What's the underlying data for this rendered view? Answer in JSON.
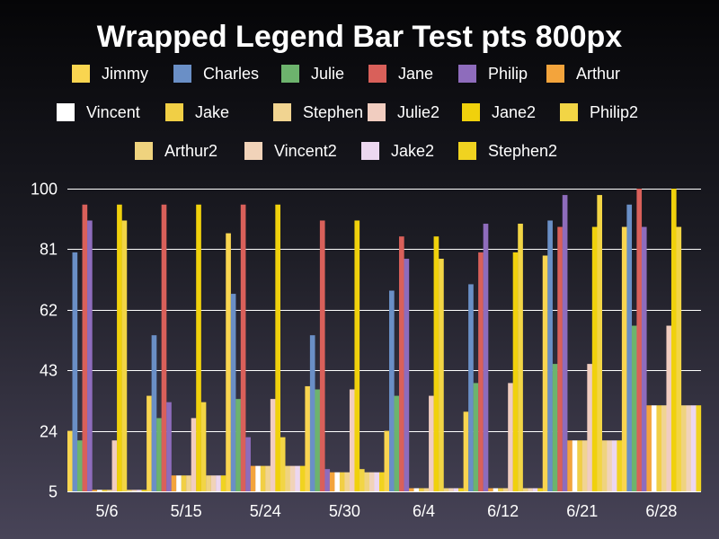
{
  "chart_data": {
    "type": "bar",
    "title": "Wrapped Legend Bar Test pts 800px",
    "xlabel": "",
    "ylabel": "",
    "ylim": [
      5,
      100
    ],
    "yticks": [
      5,
      24,
      43,
      62,
      81,
      100
    ],
    "grid": true,
    "legend_position": "top",
    "categories": [
      "5/6",
      "5/15",
      "5/24",
      "5/30",
      "6/4",
      "6/12",
      "6/21",
      "6/28"
    ],
    "series": [
      {
        "name": "Jimmy",
        "color": "#f9d550",
        "values": [
          24,
          35,
          86,
          38,
          24,
          30,
          79,
          88
        ]
      },
      {
        "name": "Charles",
        "color": "#6a8fc6",
        "values": [
          80,
          54,
          67,
          54,
          68,
          70,
          90,
          95
        ]
      },
      {
        "name": "Julie",
        "color": "#6db36d",
        "values": [
          21,
          28,
          34,
          37,
          35,
          39,
          45,
          57
        ]
      },
      {
        "name": "Jane",
        "color": "#d9605a",
        "values": [
          95,
          95,
          95,
          90,
          85,
          80,
          88,
          100
        ]
      },
      {
        "name": "Philip",
        "color": "#8e6cbc",
        "values": [
          90,
          33,
          22,
          12,
          78,
          89,
          98,
          88
        ]
      },
      {
        "name": "Arthur",
        "color": "#f3a43c",
        "values": [
          5.5,
          10,
          13,
          11,
          6,
          6,
          21,
          32
        ]
      },
      {
        "name": "Vincent",
        "color": "#ffffff",
        "values": [
          5.5,
          10,
          13,
          11,
          6,
          6,
          21,
          32
        ]
      },
      {
        "name": "Jake",
        "color": "#f1cf45",
        "values": [
          5.5,
          10,
          13,
          11,
          6,
          6,
          21,
          32
        ]
      },
      {
        "name": "Stephen",
        "color": "#f1d491",
        "values": [
          5.5,
          10,
          13,
          11,
          6,
          6,
          21,
          32
        ]
      },
      {
        "name": "Julie2",
        "color": "#f1cdc0",
        "values": [
          21,
          28,
          34,
          37,
          35,
          39,
          45,
          57
        ]
      },
      {
        "name": "Jane2",
        "color": "#f0d10c",
        "values": [
          95,
          95,
          95,
          90,
          85,
          80,
          88,
          100
        ]
      },
      {
        "name": "Philip2",
        "color": "#f2d545",
        "values": [
          90,
          33,
          22,
          12,
          78,
          89,
          98,
          88
        ]
      },
      {
        "name": "Arthur2",
        "color": "#efd37e",
        "values": [
          5.5,
          10,
          13,
          11,
          6,
          6,
          21,
          32
        ]
      },
      {
        "name": "Vincent2",
        "color": "#f1d3b9",
        "values": [
          5.5,
          10,
          13,
          11,
          6,
          6,
          21,
          32
        ]
      },
      {
        "name": "Jake2",
        "color": "#ecd7f0",
        "values": [
          5.5,
          10,
          13,
          11,
          6,
          6,
          21,
          32
        ]
      },
      {
        "name": "Stephen2",
        "color": "#f0d320",
        "values": [
          5.5,
          10,
          13,
          11,
          6,
          6,
          21,
          32
        ]
      }
    ]
  }
}
